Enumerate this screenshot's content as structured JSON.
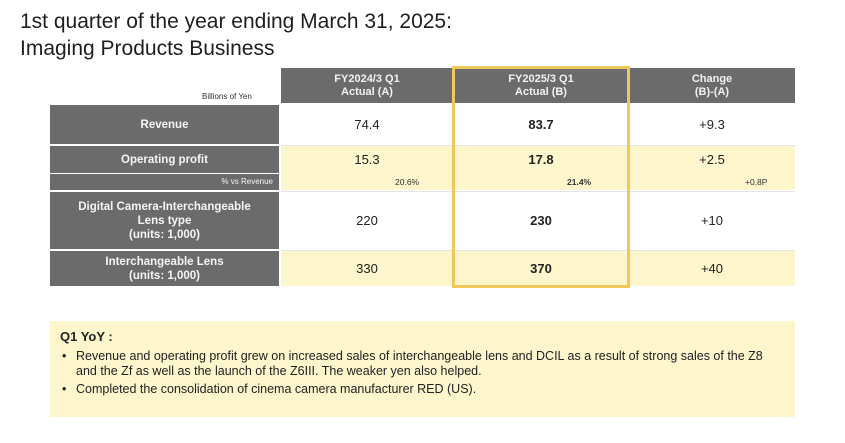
{
  "title": {
    "line1": "1st quarter of the year ending March 31, 2025:",
    "line2": "Imaging Products Business"
  },
  "table": {
    "units": "Billions of Yen",
    "columns": [
      {
        "line1": "FY2024/3 Q1",
        "line2": "Actual (A)"
      },
      {
        "line1": "FY2025/3 Q1",
        "line2": "Actual (B)"
      },
      {
        "line1": "Change",
        "line2": "(B)-(A)"
      }
    ],
    "rows": {
      "revenue": {
        "label": "Revenue",
        "a": "74.4",
        "b": "83.7",
        "change": "+9.3"
      },
      "op_profit": {
        "label": "Operating profit",
        "a": "15.3",
        "b": "17.8",
        "change": "+2.5",
        "pct_label": "% vs Revenue",
        "pct_a": "20.6%",
        "pct_b": "21.4%",
        "pct_change": "+0.8P"
      },
      "dcil": {
        "label_1": "Digital Camera-Interchangeable",
        "label_2": "Lens type",
        "label_3": "(units: 1,000)",
        "a": "220",
        "b": "230",
        "change": "+10"
      },
      "lens": {
        "label_1": "Interchangeable Lens",
        "label_2": "(units: 1,000)",
        "a": "330",
        "b": "370",
        "change": "+40"
      }
    }
  },
  "notes": {
    "heading": "Q1 YoY :",
    "bullet_symbol": "•",
    "items": [
      "Revenue and operating profit grew on increased sales of interchangeable lens and DCIL as a result of strong sales of the Z8 and the Zf as well as the launch of the Z6III. The weaker yen also helped.",
      "Completed the consolidation of cinema camera manufacturer RED (US)."
    ]
  },
  "colors": {
    "header_gray": "#6b6b6b",
    "row_yellow": "#fdf5cc",
    "highlight_border": "#f0c85a"
  }
}
